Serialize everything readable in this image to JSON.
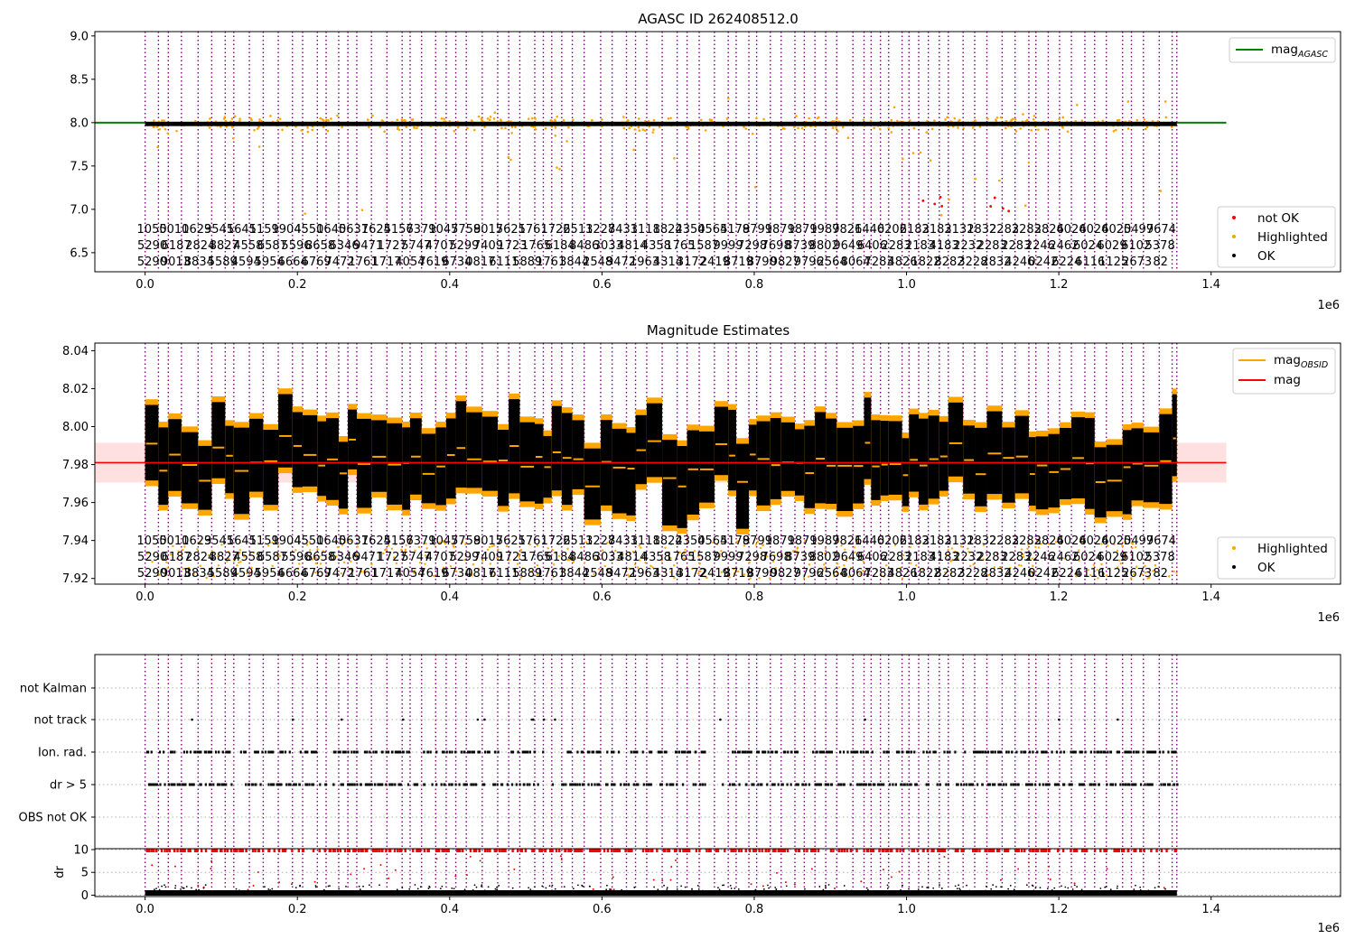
{
  "chart_data": [
    {
      "type": "scatter",
      "title": "AGASC ID 262408512.0",
      "xlim": [
        -66000,
        1570000
      ],
      "ylim": [
        6.28,
        9.05
      ],
      "x_ticks": [
        "0.0",
        "0.2",
        "0.4",
        "0.6",
        "0.8",
        "1.0",
        "1.2",
        "1.4"
      ],
      "x_tick_values": [
        0,
        200000,
        400000,
        600000,
        800000,
        1000000,
        1200000,
        1400000
      ],
      "x_multiplier": "1e6",
      "y_ticks": [
        "6.5",
        "7.0",
        "7.5",
        "8.0",
        "8.5",
        "9.0"
      ],
      "y_tick_values": [
        6.5,
        7.0,
        7.5,
        8.0,
        8.5,
        9.0
      ],
      "mag_agasc": 8.0,
      "mag_agasc_x_range": [
        -66000,
        1420000
      ],
      "ok_band": {
        "x_range": [
          0,
          1355000
        ],
        "center": 7.985,
        "half_width": 0.025
      },
      "legend_upper": [
        {
          "label": "mag",
          "sub": "AGASC",
          "color": "#008000",
          "kind": "line"
        }
      ],
      "legend_lower": [
        {
          "label": "not OK",
          "color": "#ff0000",
          "kind": "dot"
        },
        {
          "label": "Highlighted",
          "color": "#ffa500",
          "kind": "dot"
        },
        {
          "label": "OK",
          "color": "#000000",
          "kind": "dot"
        }
      ],
      "obsid_labels_row1": [
        "1050",
        "5010",
        "1629",
        "3545",
        "1641",
        "5159",
        "1904",
        "4550",
        "1640",
        "5631",
        "7624",
        "5157",
        "6379",
        "1047",
        "5759",
        "8017",
        "5625",
        "1761",
        "1722",
        "6513",
        "1227",
        "8431",
        "3118",
        "1822",
        "4350",
        "4564",
        "5179",
        "8791",
        "9871",
        "9879",
        "1989",
        "7821",
        "6440",
        "6206",
        "2183",
        "2183",
        "2132",
        "1832",
        "2283",
        "2283",
        "2824",
        "6024",
        "6024",
        "6025",
        "0499",
        "7674"
      ],
      "obsid_labels_row2": [
        "5290",
        "6187",
        "2824",
        "8827",
        "4558",
        "6587",
        "5596",
        "8658",
        "6346",
        "9471",
        "1727",
        "5747",
        "4707",
        "5299",
        "7409",
        "1723",
        "1765",
        "6184",
        "8486",
        "3033",
        "4814",
        "4358",
        "1765",
        "1587",
        "9999",
        "7298",
        "7698",
        "8739",
        "8802",
        "9649",
        "6406",
        "2283",
        "2183",
        "4183",
        "2232",
        "2283",
        "2283",
        "2246",
        "2462",
        "6024",
        "6029",
        "6102",
        "5378"
      ],
      "obsid_labels_row3": [
        "5290",
        "9013",
        "8834",
        "5589",
        "4594",
        "5954",
        "6664",
        "6769",
        "7472",
        "1761",
        "1717",
        "4054",
        "7619",
        "6734",
        "0817",
        "6111",
        "5889",
        "1761",
        "3844",
        "2548",
        "9472",
        "1963",
        "4314",
        "3172",
        "2419",
        "8719",
        "8790",
        "9827",
        "9796",
        "2564",
        "8064",
        "7283",
        "4826",
        "1822",
        "8282",
        "3228",
        "2832",
        "4246",
        "0242",
        "6224",
        "6116",
        "1125",
        "2673",
        "82"
      ]
    },
    {
      "type": "scatter",
      "title": "Magnitude Estimates",
      "xlim": [
        -66000,
        1570000
      ],
      "ylim": [
        7.917,
        8.044
      ],
      "x_ticks": [
        "0.0",
        "0.2",
        "0.4",
        "0.6",
        "0.8",
        "1.0",
        "1.2",
        "1.4"
      ],
      "x_tick_values": [
        0,
        200000,
        400000,
        600000,
        800000,
        1000000,
        1200000,
        1400000
      ],
      "x_multiplier": "1e6",
      "y_ticks": [
        "7.92",
        "7.94",
        "7.96",
        "7.98",
        "8.00",
        "8.02",
        "8.04"
      ],
      "y_tick_values": [
        7.92,
        7.94,
        7.96,
        7.98,
        8.0,
        8.02,
        8.04
      ],
      "mag": 7.981,
      "mag_band": [
        7.9705,
        7.9915
      ],
      "mag_x_range": [
        -66000,
        1420000
      ],
      "legend_upper": [
        {
          "label": "mag",
          "sub": "OBSID",
          "color": "#ffa500",
          "kind": "line"
        },
        {
          "label": "mag",
          "sub": "",
          "color": "#ff0000",
          "kind": "line"
        }
      ],
      "legend_lower": [
        {
          "label": "Highlighted",
          "color": "#ffa500",
          "kind": "dot"
        },
        {
          "label": "OK",
          "color": "#000000",
          "kind": "dot"
        }
      ]
    },
    {
      "type": "scatter",
      "title": "",
      "xlim": [
        -66000,
        1570000
      ],
      "x_ticks": [
        "0.0",
        "0.2",
        "0.4",
        "0.6",
        "0.8",
        "1.0",
        "1.2",
        "1.4"
      ],
      "x_tick_values": [
        0,
        200000,
        400000,
        600000,
        800000,
        1000000,
        1200000,
        1400000
      ],
      "x_multiplier": "1e6",
      "flag_categories": [
        "not Kalman",
        "not track",
        "Ion. rad.",
        "dr > 5",
        "OBS not OK"
      ],
      "dr_ylabel": "dr",
      "dr_ylim": [
        -0.3,
        10.0
      ],
      "dr_ticks": [
        "0",
        "5",
        "10"
      ],
      "dr_tick_values": [
        0,
        5,
        10
      ]
    }
  ]
}
